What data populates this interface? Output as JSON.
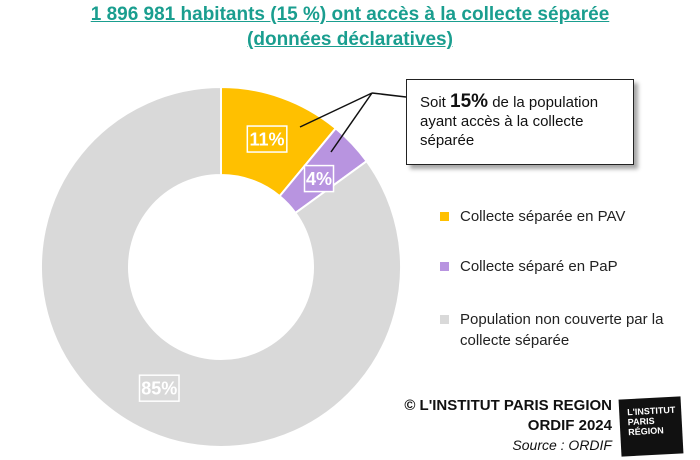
{
  "title": {
    "line1": "1 896 981 habitants (15 %) ont accès à la collecte séparée",
    "line2": "(données déclaratives)"
  },
  "colors": {
    "title": "#1a9e8f",
    "pav": "#ffc000",
    "pap": "#b894e0",
    "non_couverte": "#d9d9d9"
  },
  "chart_data": {
    "type": "pie",
    "donut": true,
    "slices": [
      {
        "name": "Collecte séparée en PAV",
        "value": 11,
        "label": "11%",
        "color": "#ffc000"
      },
      {
        "name": "Collecte séparé en PaP",
        "value": 4,
        "label": "4%",
        "color": "#b894e0"
      },
      {
        "name": "Population non couverte par la collecte séparée",
        "value": 85,
        "label": "85%",
        "color": "#d9d9d9"
      }
    ],
    "legend_position": "right"
  },
  "callout": {
    "prefix": "Soit ",
    "value": "15%",
    "suffix": " de la population ayant accès à la collecte séparée"
  },
  "legend": {
    "pav": "Collecte séparée en PAV",
    "pap": "Collecte séparé en PaP",
    "non_couverte": "Population non couverte par la collecte séparée"
  },
  "credit": {
    "line1": "© L'INSTITUT PARIS REGION",
    "line2": "ORDIF 2024",
    "line3": "Source : ORDIF"
  },
  "logo": {
    "line1": "L'INSTITUT",
    "line2": "PARIS",
    "line3": "RÉGION"
  }
}
